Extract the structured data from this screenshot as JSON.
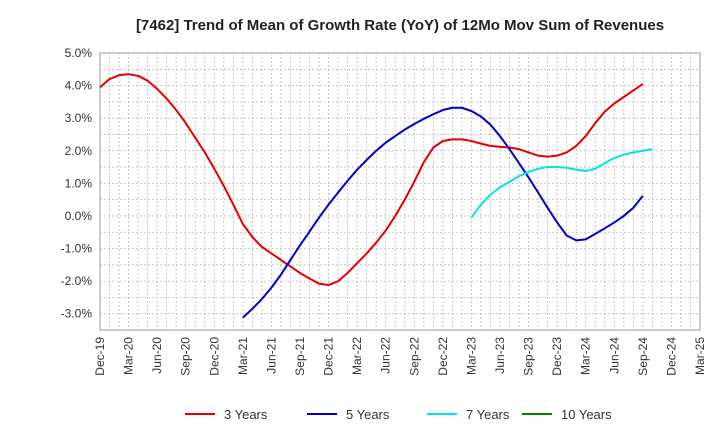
{
  "chart_data": {
    "type": "line",
    "title": "[7462]  Trend of Mean of Growth Rate (YoY) of 12Mo Mov Sum of Revenues",
    "xlabel": "",
    "ylabel": "",
    "ylim": [
      -3.5,
      5.0
    ],
    "grid": true,
    "legend_position": "bottom",
    "x_ticks": [
      "Dec-19",
      "Mar-20",
      "Jun-20",
      "Sep-20",
      "Dec-20",
      "Mar-21",
      "Jun-21",
      "Sep-21",
      "Dec-21",
      "Mar-22",
      "Jun-22",
      "Sep-22",
      "Dec-22",
      "Mar-23",
      "Jun-23",
      "Sep-23",
      "Dec-23",
      "Mar-24",
      "Jun-24",
      "Sep-24",
      "Dec-24",
      "Mar-25"
    ],
    "y_ticks": [
      {
        "value": 5.0,
        "label": "5.0%"
      },
      {
        "value": 4.0,
        "label": "4.0%"
      },
      {
        "value": 3.0,
        "label": "3.0%"
      },
      {
        "value": 2.0,
        "label": "2.0%"
      },
      {
        "value": 1.0,
        "label": "1.0%"
      },
      {
        "value": 0.0,
        "label": "0.0%"
      },
      {
        "value": -1.0,
        "label": "-1.0%"
      },
      {
        "value": -2.0,
        "label": "-2.0%"
      },
      {
        "value": -3.0,
        "label": "-3.0%"
      }
    ],
    "series": [
      {
        "name": "3 Years",
        "color": "#e60000",
        "start_index": 0,
        "values": [
          3.95,
          4.2,
          4.32,
          4.35,
          4.3,
          4.15,
          3.9,
          3.6,
          3.25,
          2.85,
          2.4,
          1.95,
          1.45,
          0.92,
          0.35,
          -0.25,
          -0.65,
          -0.95,
          -1.15,
          -1.35,
          -1.55,
          -1.75,
          -1.92,
          -2.08,
          -2.12,
          -2.0,
          -1.75,
          -1.45,
          -1.15,
          -0.82,
          -0.45,
          0.0,
          0.5,
          1.05,
          1.65,
          2.1,
          2.3,
          2.35,
          2.35,
          2.3,
          2.22,
          2.15,
          2.12,
          2.1,
          2.05,
          1.95,
          1.85,
          1.82,
          1.85,
          1.95,
          2.15,
          2.45,
          2.85,
          3.2,
          3.45,
          3.65,
          3.85,
          4.05
        ]
      },
      {
        "name": "5 Years",
        "color": "#0000cc",
        "start_index": 15,
        "values": [
          -3.12,
          -2.85,
          -2.55,
          -2.2,
          -1.8,
          -1.35,
          -0.9,
          -0.48,
          -0.05,
          0.35,
          0.72,
          1.08,
          1.42,
          1.72,
          2.0,
          2.25,
          2.45,
          2.65,
          2.82,
          2.98,
          3.12,
          3.25,
          3.32,
          3.32,
          3.22,
          3.05,
          2.8,
          2.45,
          2.05,
          1.62,
          1.18,
          0.72,
          0.25,
          -0.2,
          -0.6,
          -0.75,
          -0.72,
          -0.55,
          -0.38,
          -0.2,
          0.0,
          0.25,
          0.62
        ]
      },
      {
        "name": "7 Years",
        "color": "#00e5e5",
        "start_index": 39,
        "values": [
          -0.05,
          0.35,
          0.65,
          0.88,
          1.05,
          1.22,
          1.35,
          1.45,
          1.5,
          1.5,
          1.48,
          1.42,
          1.38,
          1.45,
          1.62,
          1.78,
          1.88,
          1.95,
          2.0,
          2.05
        ]
      },
      {
        "name": "10 Years",
        "color": "#008000",
        "start_index": 0,
        "values": []
      }
    ]
  }
}
